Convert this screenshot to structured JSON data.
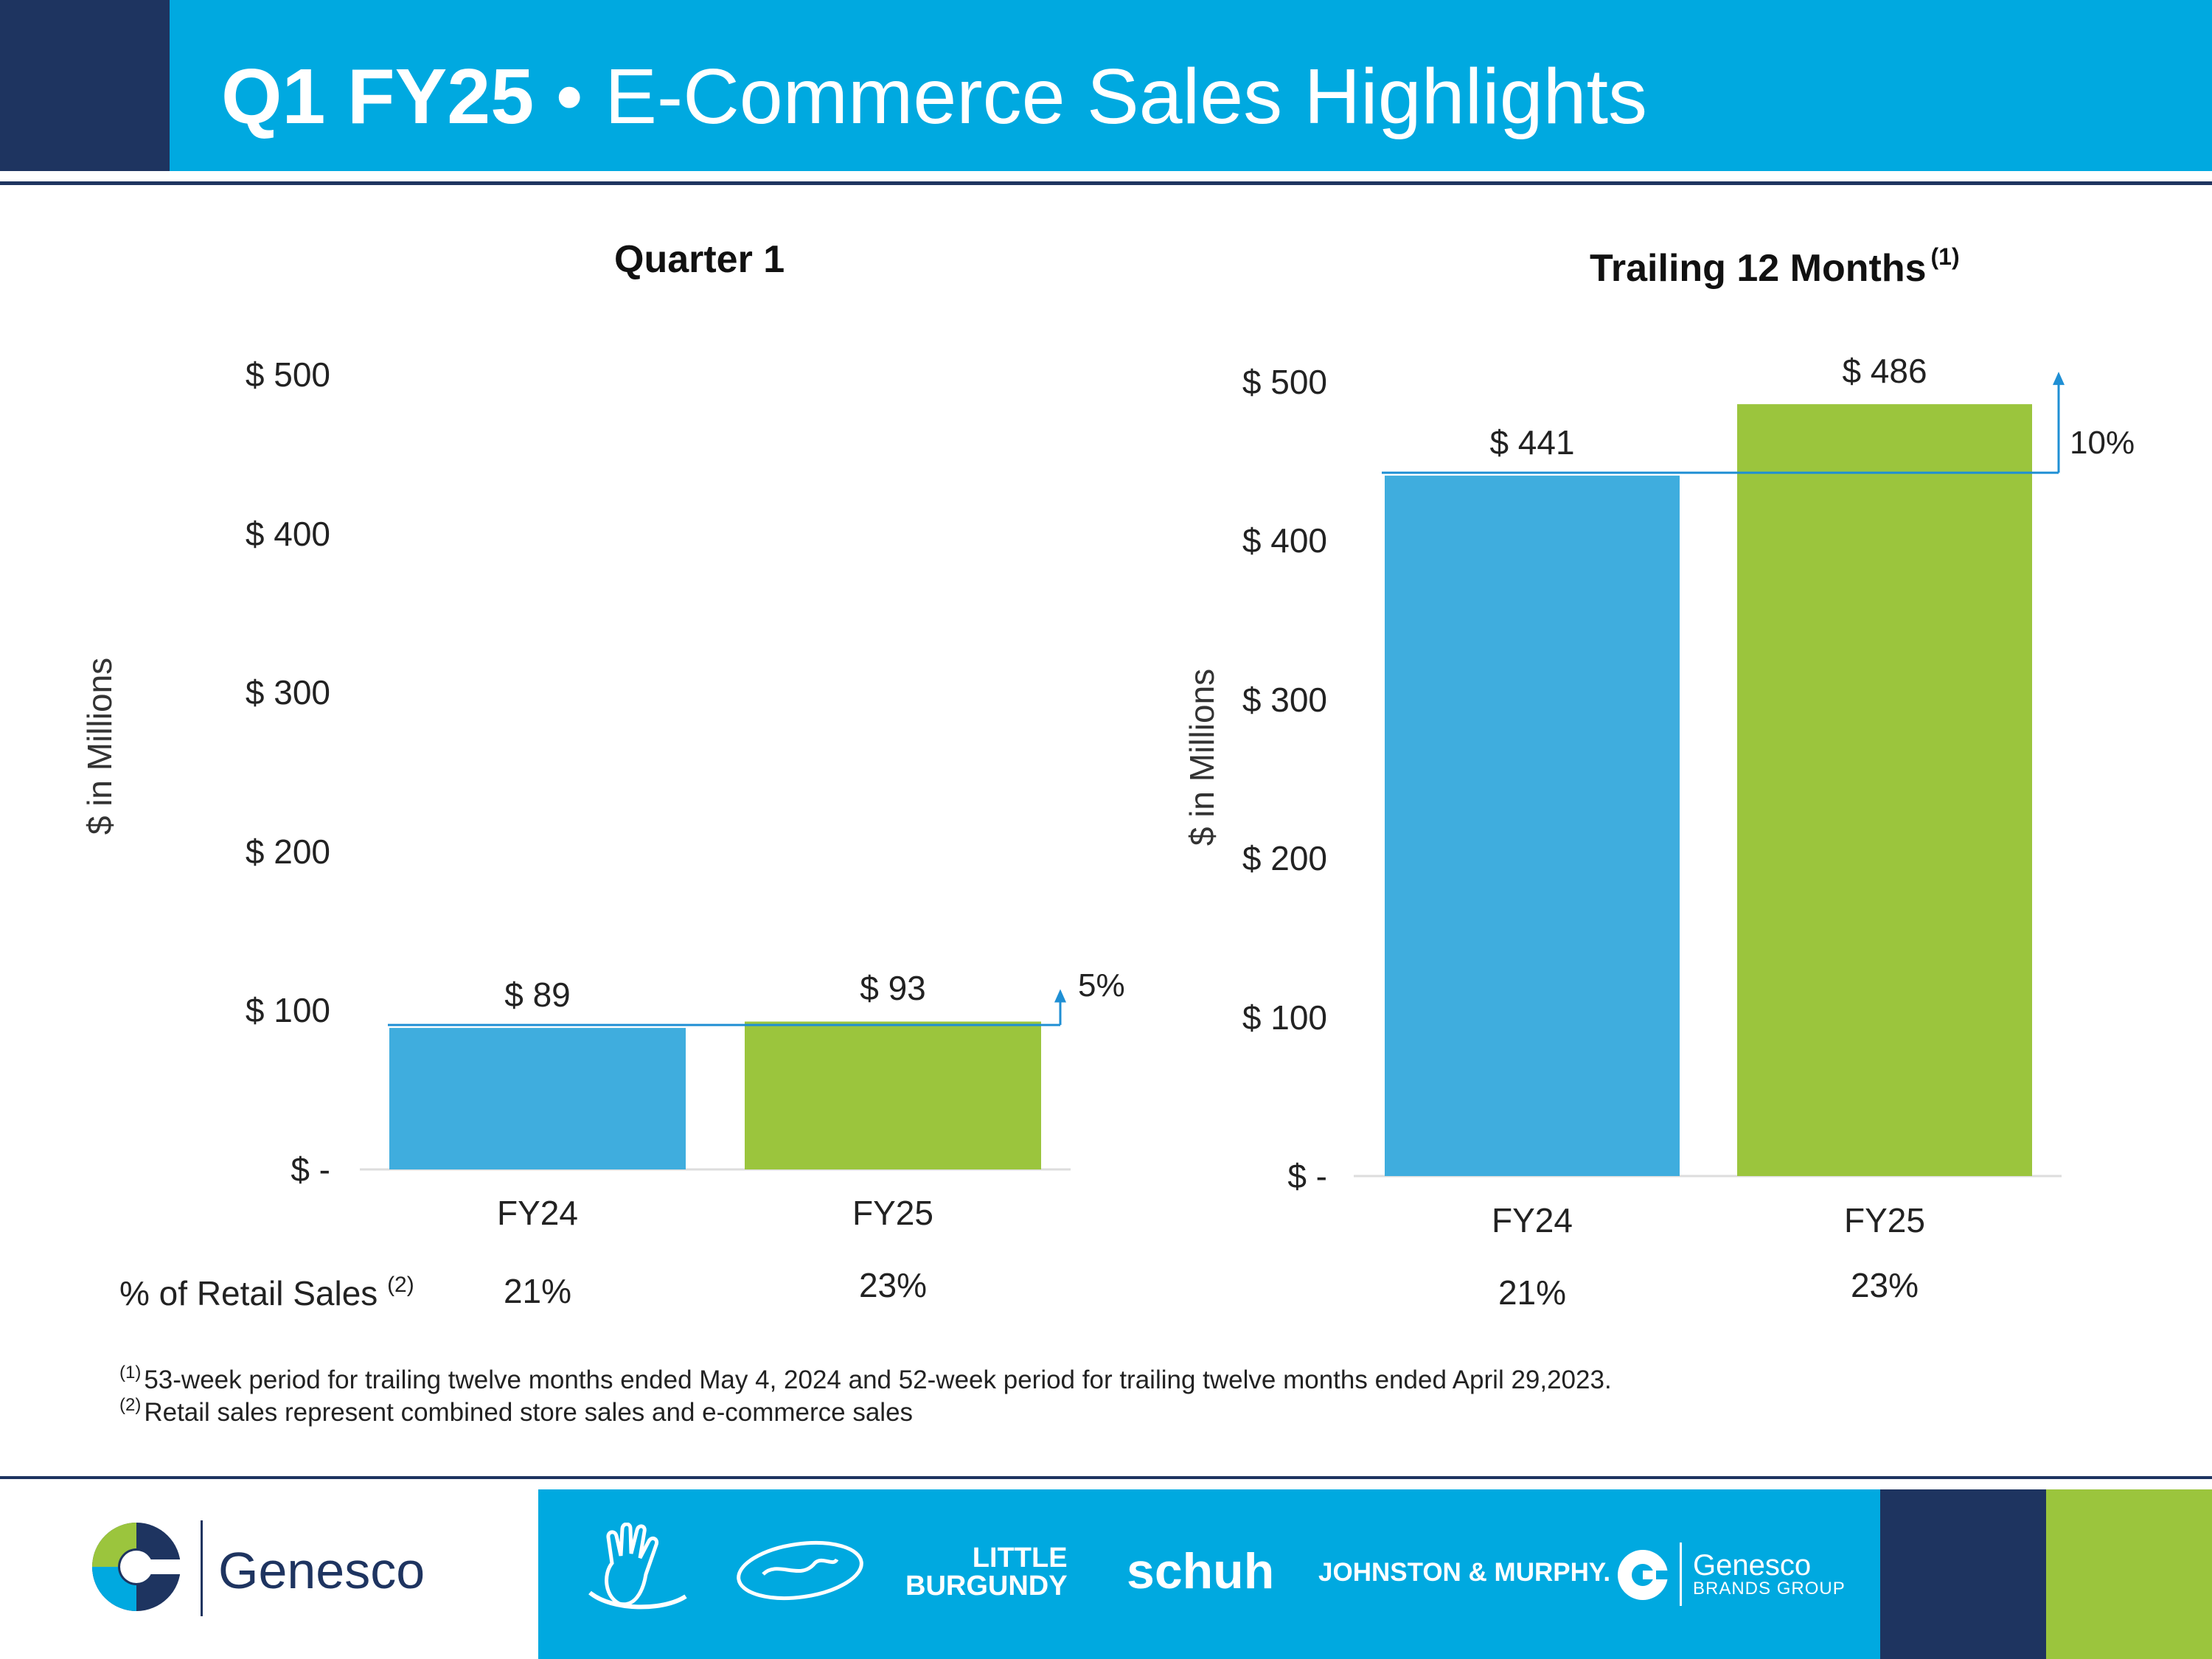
{
  "header": {
    "title_bold": "Q1 FY25",
    "title_rest": "• E-Commerce Sales Highlights"
  },
  "colors": {
    "navy": "#1e3460",
    "header_blue": "#00a9e0",
    "fy24_bar": "#3fadde",
    "fy25_bar": "#9bc53d",
    "arrow": "#1f8fd4"
  },
  "retail_label": "% of Retail Sales",
  "retail_label_note": "(2)",
  "chart_data": [
    {
      "type": "bar",
      "title": "Quarter 1",
      "title_note": "",
      "ylabel": "$ in Millions",
      "categories": [
        "FY24",
        "FY25"
      ],
      "values": [
        89,
        93
      ],
      "data_labels": [
        "$ 89",
        "$ 93"
      ],
      "ylim": [
        0,
        500
      ],
      "yticks": [
        0,
        100,
        200,
        300,
        400,
        500
      ],
      "ytick_labels": [
        "$ -",
        "$ 100",
        "$ 200",
        "$ 300",
        "$ 400",
        "$ 500"
      ],
      "growth_label": "5%",
      "pct_of_retail": [
        "21%",
        "23%"
      ],
      "grid": false,
      "legend": "none"
    },
    {
      "type": "bar",
      "title": "Trailing 12 Months",
      "title_note": "(1)",
      "ylabel": "$ in Millions",
      "categories": [
        "FY24",
        "FY25"
      ],
      "values": [
        441,
        486
      ],
      "data_labels": [
        "$ 441",
        "$ 486"
      ],
      "ylim": [
        0,
        500
      ],
      "yticks": [
        0,
        100,
        200,
        300,
        400,
        500
      ],
      "ytick_labels": [
        "$ -",
        "$ 100",
        "$ 200",
        "$ 300",
        "$ 400",
        "$ 500"
      ],
      "growth_label": "10%",
      "pct_of_retail": [
        "21%",
        "23%"
      ],
      "grid": false,
      "legend": "none"
    }
  ],
  "footnotes": [
    {
      "mark": "(1)",
      "text": "53-week period for trailing twelve months ended May 4, 2024 and 52-week period for trailing twelve months ended April 29,2023."
    },
    {
      "mark": "(2)",
      "text": "Retail sales represent combined store sales and e-commerce sales"
    }
  ],
  "footer": {
    "logo_text": "Genesco",
    "brands": {
      "little_1": "LITTLE",
      "little_2": "BURGUNDY",
      "schuh": "schuh",
      "jm": "JOHNSTON & MURPHY.",
      "gbg_1": "Genesco",
      "gbg_2": "BRANDS GROUP"
    }
  }
}
